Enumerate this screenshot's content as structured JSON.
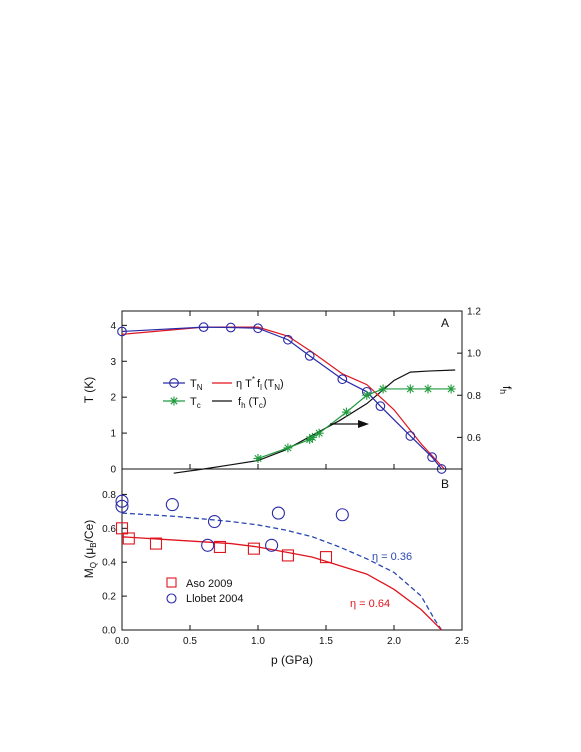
{
  "chart_data": [
    {
      "panel": "A",
      "type": "line",
      "panel_label": "A",
      "xlabel": "",
      "ylabel": "T (K)",
      "y2label": "f",
      "y2label_sub": "h",
      "xlim": [
        0,
        2.5
      ],
      "ylim": [
        0,
        4.4
      ],
      "y2lim": [
        0.45,
        1.2
      ],
      "yticks": [
        "0",
        "1",
        "2",
        "3",
        "4"
      ],
      "y2ticks": [
        "0.6",
        "0.8",
        "1.0",
        "1.2"
      ],
      "grid": false,
      "legend_position": "center-left",
      "arrow_direction": "right",
      "series": [
        {
          "name": "T",
          "name_sub": "N",
          "marker": "circle",
          "color": "#2a2aa8",
          "axis": "left",
          "x": [
            0.0,
            0.6,
            0.8,
            1.0,
            1.22,
            1.38,
            1.62,
            1.8,
            1.9,
            2.12,
            2.28,
            2.35
          ],
          "y": [
            3.83,
            3.95,
            3.94,
            3.92,
            3.6,
            3.15,
            2.5,
            2.15,
            1.75,
            0.92,
            0.33,
            0.0
          ]
        },
        {
          "name": "T",
          "name_sub": "c",
          "marker": "asterisk",
          "color": "#1f9a3c",
          "axis": "right",
          "x": [
            1.0,
            1.22,
            1.38,
            1.4,
            1.45,
            1.65,
            1.8,
            1.92,
            2.12,
            2.25,
            2.42
          ],
          "y": [
            0.5,
            0.55,
            0.59,
            0.6,
            0.62,
            0.72,
            0.8,
            0.83,
            0.83,
            0.83,
            0.83
          ]
        },
        {
          "name": "η T",
          "name_sup": "*",
          "name_mid": "f",
          "name_sub": "l",
          "name_tail": "(T",
          "name_tail_sub": "N",
          "name_end": ")",
          "marker": "none",
          "color": "#e0141e",
          "axis": "left",
          "x": [
            0.0,
            0.6,
            1.0,
            1.22,
            1.4,
            1.62,
            1.8,
            2.0,
            2.2,
            2.37
          ],
          "y": [
            3.75,
            3.95,
            3.95,
            3.7,
            3.25,
            2.65,
            2.35,
            1.65,
            0.7,
            0.0
          ]
        },
        {
          "name": "f",
          "name_sub": "h",
          "name_tail": "(T",
          "name_tail_sub": "c",
          "name_end": ")",
          "marker": "none",
          "color": "#111111",
          "axis": "right",
          "x": [
            0.38,
            0.6,
            0.8,
            1.0,
            1.2,
            1.4,
            1.6,
            1.8,
            2.0,
            2.12,
            2.25,
            2.45
          ],
          "y": [
            0.43,
            0.45,
            0.47,
            0.49,
            0.54,
            0.61,
            0.68,
            0.76,
            0.87,
            0.91,
            0.915,
            0.92
          ]
        }
      ]
    },
    {
      "panel": "B",
      "type": "scatter",
      "panel_label": "B",
      "xlabel": "p (GPa)",
      "ylabel": "M",
      "ylabel_sub": "Q",
      "ylabel_tail": " (μ",
      "ylabel_tail_sub": "B",
      "ylabel_end": "/Ce)",
      "xlim": [
        0,
        2.5
      ],
      "ylim": [
        0,
        0.95
      ],
      "xticks": [
        "0.0",
        "0.5",
        "1.0",
        "1.5",
        "2.0",
        "2.5"
      ],
      "yticks": [
        "0.0",
        "0.2",
        "0.4",
        "0.6",
        "0.8"
      ],
      "grid": false,
      "legend_position": "bottom-left",
      "series": [
        {
          "name": "Aso 2009",
          "marker": "square",
          "color": "#e0141e",
          "x": [
            0.0,
            0.05,
            0.25,
            0.72,
            0.97,
            1.22,
            1.5
          ],
          "y": [
            0.6,
            0.54,
            0.51,
            0.49,
            0.48,
            0.44,
            0.43
          ]
        },
        {
          "name": "Llobet 2004",
          "marker": "circle",
          "color": "#2a2aa8",
          "x": [
            0.0,
            0.0,
            0.37,
            0.63,
            0.68,
            1.1,
            1.15,
            1.62
          ],
          "y": [
            0.76,
            0.73,
            0.74,
            0.5,
            0.64,
            0.5,
            0.69,
            0.68
          ]
        }
      ],
      "fits": [
        {
          "label": "η = 0.36",
          "style": "dashed",
          "color": "#2a48b0",
          "x": [
            0.0,
            0.4,
            0.8,
            1.0,
            1.2,
            1.4,
            1.6,
            1.8,
            2.0,
            2.2,
            2.3,
            2.35
          ],
          "y": [
            0.69,
            0.67,
            0.64,
            0.62,
            0.59,
            0.55,
            0.49,
            0.42,
            0.34,
            0.2,
            0.06,
            0.0
          ]
        },
        {
          "label": "η = 0.64",
          "style": "solid",
          "color": "#e0141e",
          "x": [
            0.0,
            0.4,
            0.8,
            1.0,
            1.2,
            1.4,
            1.6,
            1.8,
            2.0,
            2.2,
            2.3,
            2.35
          ],
          "y": [
            0.55,
            0.53,
            0.51,
            0.49,
            0.46,
            0.43,
            0.38,
            0.33,
            0.24,
            0.12,
            0.04,
            0.0
          ]
        }
      ]
    }
  ]
}
